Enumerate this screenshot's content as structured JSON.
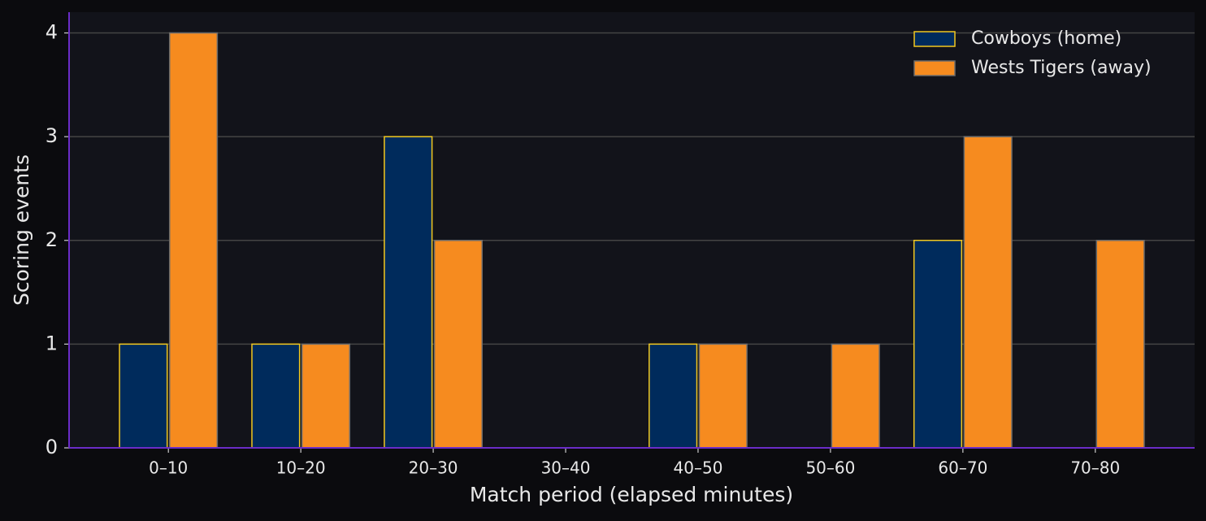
{
  "chart_data": {
    "type": "bar",
    "x_label": "Match period (elapsed minutes)",
    "y_label": "Scoring events",
    "categories": [
      "0–10",
      "10–20",
      "20–30",
      "30–40",
      "40–50",
      "50–60",
      "60–70",
      "70–80"
    ],
    "series": [
      {
        "name": "Cowboys (home)",
        "color": "#002b5c",
        "edge_color": "#f2c81e",
        "values": [
          1,
          1,
          3,
          0,
          1,
          0,
          2,
          0
        ]
      },
      {
        "name": "Wests Tigers (away)",
        "color": "#f68b1f",
        "edge_color": "#6b6b6b",
        "values": [
          4,
          1,
          2,
          0,
          1,
          1,
          3,
          2
        ]
      }
    ],
    "ylim": [
      0,
      4.2
    ],
    "yticks": [
      0,
      1,
      2,
      3,
      4
    ],
    "grid": true,
    "legend": "upper right"
  }
}
